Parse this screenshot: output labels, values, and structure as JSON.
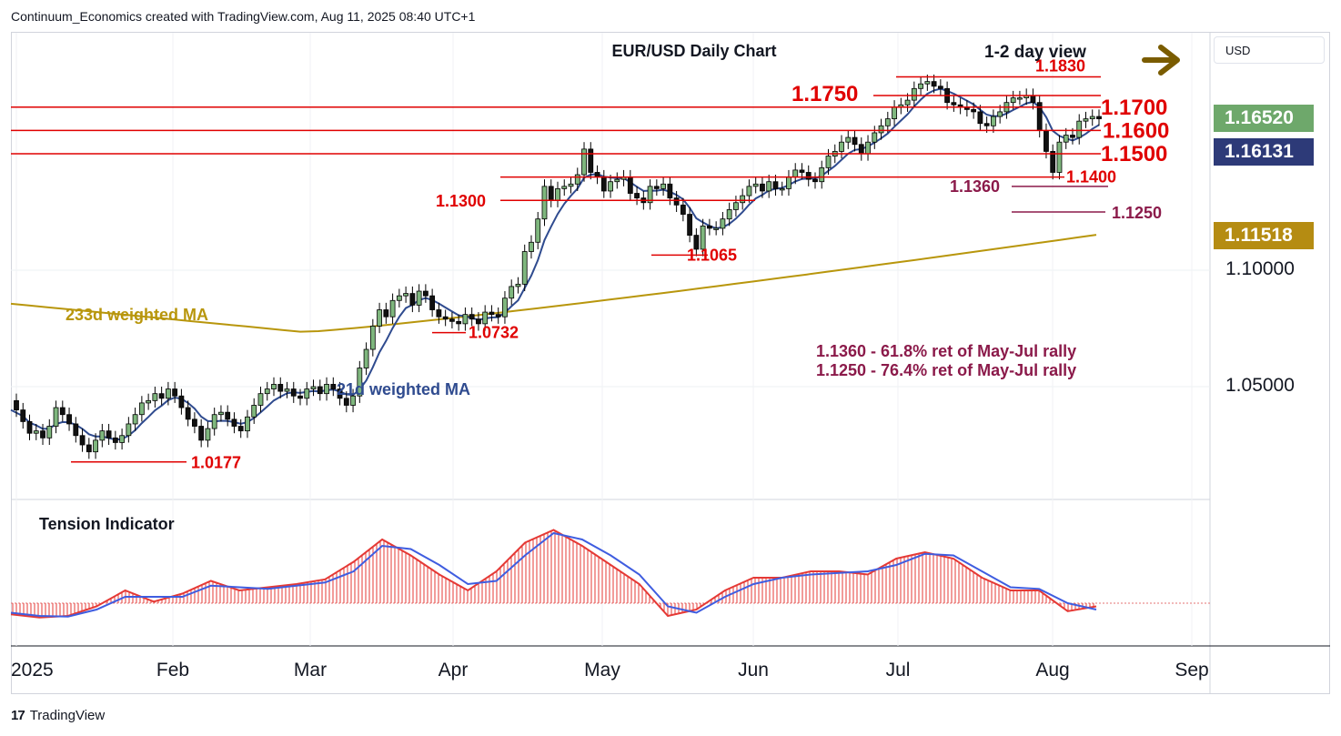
{
  "header": {
    "attribution": "Continuum_Economics created with TradingView.com, Aug 11, 2025 08:40 UTC+1"
  },
  "footer": {
    "brand": "TradingView",
    "logo": "17"
  },
  "currency_button": "USD",
  "price_badges": [
    {
      "value": "1.16520",
      "color": "#6ea86b"
    },
    {
      "value": "1.16131",
      "color": "#2d3a78"
    },
    {
      "value": "1.11518",
      "color": "#b58c12"
    }
  ],
  "price_ticks": [
    "1.10000",
    "1.05000"
  ],
  "colors": {
    "resistance": "#e00000",
    "support_ret": "#8b1a4a",
    "ma233": "#b8960c",
    "ma21": "#2f4b8f",
    "tension_red": "#e53935",
    "tension_blue": "#3f5de0",
    "arrow": "#7a5c00"
  },
  "chart_data": [
    {
      "type": "candlestick",
      "title": "EUR/USD Daily Chart",
      "view_label": "1-2 day view",
      "view_arrow": "right-arrow",
      "x_tick_labels": [
        "2025",
        "Feb",
        "Mar",
        "Apr",
        "May",
        "Jun",
        "Jul",
        "Aug",
        "Sep"
      ],
      "y_tick_labels": [
        "1.10000",
        "1.05000"
      ],
      "last_close": 1.1652,
      "moving_averages": [
        {
          "name": "21d weighted MA",
          "last": 1.16131
        },
        {
          "name": "233d weighted MA",
          "last": 1.11518
        }
      ],
      "levels": [
        {
          "label": "1.1830",
          "value": 1.183,
          "kind": "resistance"
        },
        {
          "label": "1.1750",
          "value": 1.175,
          "kind": "resistance"
        },
        {
          "label": "1.1700",
          "value": 1.17,
          "kind": "resistance"
        },
        {
          "label": "1.1600",
          "value": 1.16,
          "kind": "resistance"
        },
        {
          "label": "1.1500",
          "value": 1.15,
          "kind": "resistance"
        },
        {
          "label": "1.1400",
          "value": 1.14,
          "kind": "support"
        },
        {
          "label": "1.1360",
          "value": 1.136,
          "kind": "retracement"
        },
        {
          "label": "1.1300",
          "value": 1.13,
          "kind": "support"
        },
        {
          "label": "1.1250",
          "value": 1.125,
          "kind": "retracement"
        },
        {
          "label": "1.1065",
          "value": 1.1065,
          "kind": "low"
        },
        {
          "label": "1.0732",
          "value": 1.0732,
          "kind": "low"
        },
        {
          "label": "1.0177",
          "value": 1.0177,
          "kind": "low"
        }
      ],
      "annotations": [
        "1.1360 - 61.8% ret of May-Jul rally",
        "1.1250 - 76.4% ret of May-Jul rally"
      ],
      "candles_close": [
        1.04,
        1.035,
        1.03,
        1.031,
        1.028,
        1.033,
        1.041,
        1.038,
        1.034,
        1.029,
        1.025,
        1.022,
        1.027,
        1.031,
        1.028,
        1.026,
        1.029,
        1.034,
        1.038,
        1.043,
        1.044,
        1.047,
        1.045,
        1.049,
        1.046,
        1.041,
        1.036,
        1.033,
        1.027,
        1.032,
        1.038,
        1.039,
        1.036,
        1.033,
        1.031,
        1.037,
        1.042,
        1.047,
        1.049,
        1.051,
        1.048,
        1.049,
        1.046,
        1.045,
        1.049,
        1.05,
        1.047,
        1.051,
        1.049,
        1.045,
        1.042,
        1.046,
        1.058,
        1.066,
        1.076,
        1.083,
        1.08,
        1.087,
        1.089,
        1.09,
        1.085,
        1.091,
        1.089,
        1.083,
        1.08,
        1.079,
        1.078,
        1.077,
        1.081,
        1.079,
        1.077,
        1.082,
        1.081,
        1.08,
        1.088,
        1.093,
        1.094,
        1.108,
        1.112,
        1.122,
        1.136,
        1.13,
        1.135,
        1.136,
        1.137,
        1.141,
        1.152,
        1.142,
        1.14,
        1.134,
        1.138,
        1.139,
        1.14,
        1.133,
        1.131,
        1.129,
        1.136,
        1.135,
        1.137,
        1.131,
        1.128,
        1.124,
        1.115,
        1.109,
        1.119,
        1.118,
        1.118,
        1.122,
        1.126,
        1.129,
        1.132,
        1.136,
        1.137,
        1.134,
        1.138,
        1.135,
        1.135,
        1.14,
        1.143,
        1.142,
        1.139,
        1.138,
        1.144,
        1.149,
        1.151,
        1.155,
        1.157,
        1.154,
        1.15,
        1.155,
        1.159,
        1.162,
        1.165,
        1.17,
        1.171,
        1.173,
        1.178,
        1.18,
        1.181,
        1.179,
        1.178,
        1.172,
        1.171,
        1.17,
        1.169,
        1.168,
        1.163,
        1.162,
        1.166,
        1.168,
        1.172,
        1.174,
        1.174,
        1.175,
        1.172,
        1.16,
        1.151,
        1.142,
        1.155,
        1.158,
        1.157,
        1.164,
        1.165,
        1.166,
        1.165
      ]
    },
    {
      "type": "line",
      "title": "Tension Indicator",
      "series": [
        {
          "values": [
            -0.35,
            -0.45,
            -0.4,
            -0.1,
            0.4,
            0.05,
            0.3,
            0.7,
            0.4,
            0.5,
            0.6,
            0.75,
            1.3,
            2.0,
            1.5,
            0.9,
            0.4,
            1.0,
            1.9,
            2.3,
            1.8,
            1.2,
            0.6,
            -0.4,
            -0.2,
            0.4,
            0.8,
            0.8,
            1.0,
            1.0,
            0.9,
            1.4,
            1.6,
            1.4,
            0.8,
            0.4,
            0.4,
            -0.25,
            -0.1
          ]
        },
        {
          "values": [
            -0.3,
            -0.4,
            -0.42,
            -0.2,
            0.2,
            0.2,
            0.2,
            0.55,
            0.5,
            0.45,
            0.55,
            0.65,
            1.0,
            1.8,
            1.7,
            1.2,
            0.6,
            0.7,
            1.5,
            2.2,
            2.0,
            1.5,
            0.9,
            -0.1,
            -0.3,
            0.2,
            0.6,
            0.8,
            0.9,
            0.95,
            1.0,
            1.2,
            1.55,
            1.5,
            1.0,
            0.5,
            0.45,
            0.0,
            -0.2
          ]
        }
      ]
    }
  ]
}
